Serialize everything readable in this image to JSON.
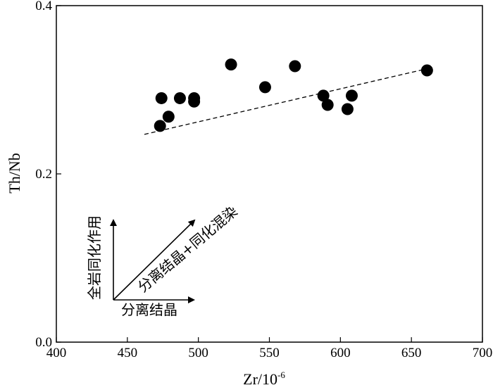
{
  "chart_data": {
    "type": "scatter",
    "xlabel": "Zr/10",
    "xlabel_exponent": "-6",
    "ylabel": "Th/Nb",
    "xlim": [
      400,
      700
    ],
    "ylim": [
      0.0,
      0.4
    ],
    "x_ticks": [
      "400",
      "450",
      "500",
      "550",
      "600",
      "650",
      "700"
    ],
    "y_ticks": [
      "0.0",
      "0.2",
      "0.4"
    ],
    "grid": false,
    "series": [
      {
        "points": [
          {
            "x": 473,
            "y": 0.257
          },
          {
            "x": 474,
            "y": 0.29
          },
          {
            "x": 479,
            "y": 0.268
          },
          {
            "x": 487,
            "y": 0.29
          },
          {
            "x": 497,
            "y": 0.29
          },
          {
            "x": 497,
            "y": 0.286
          },
          {
            "x": 523,
            "y": 0.33
          },
          {
            "x": 547,
            "y": 0.303
          },
          {
            "x": 568,
            "y": 0.328
          },
          {
            "x": 588,
            "y": 0.293
          },
          {
            "x": 591,
            "y": 0.282
          },
          {
            "x": 605,
            "y": 0.277
          },
          {
            "x": 608,
            "y": 0.293
          },
          {
            "x": 661,
            "y": 0.323
          }
        ],
        "color": "#000000"
      }
    ],
    "trend_line": {
      "style": "dashed",
      "from": {
        "x": 462,
        "y": 0.247
      },
      "to": {
        "x": 661,
        "y": 0.325
      }
    },
    "annotations": {
      "vertical_arrow_label": "全岩同化作用",
      "diagonal_arrow_label": "分离结晶+同化混染",
      "horizontal_arrow_label": "分离结晶"
    }
  }
}
